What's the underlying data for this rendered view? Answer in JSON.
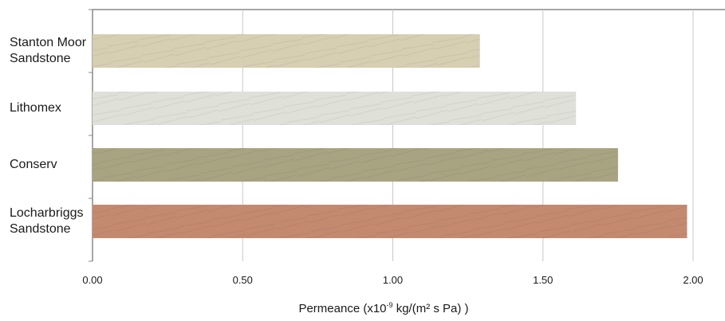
{
  "chart_data": {
    "type": "bar",
    "orientation": "horizontal",
    "categories": [
      "Stanton Moor\nSandstone",
      "Lithomex",
      "Conserv",
      "Locharbriggs\nSandstone"
    ],
    "values": [
      1.29,
      1.61,
      1.75,
      1.98
    ],
    "xlim": [
      0,
      2.0
    ],
    "xticks": [
      "0.00",
      "0.50",
      "1.00",
      "1.50",
      "2.00"
    ],
    "xlabel_prefix": "Permeance (x10",
    "xlabel_exp": "-9",
    "xlabel_suffix": " kg/(m² s Pa) )",
    "grid": true,
    "bar_colors": [
      "#d7cfb2",
      "#dfe0d8",
      "#a8a482",
      "#c48a70"
    ]
  }
}
